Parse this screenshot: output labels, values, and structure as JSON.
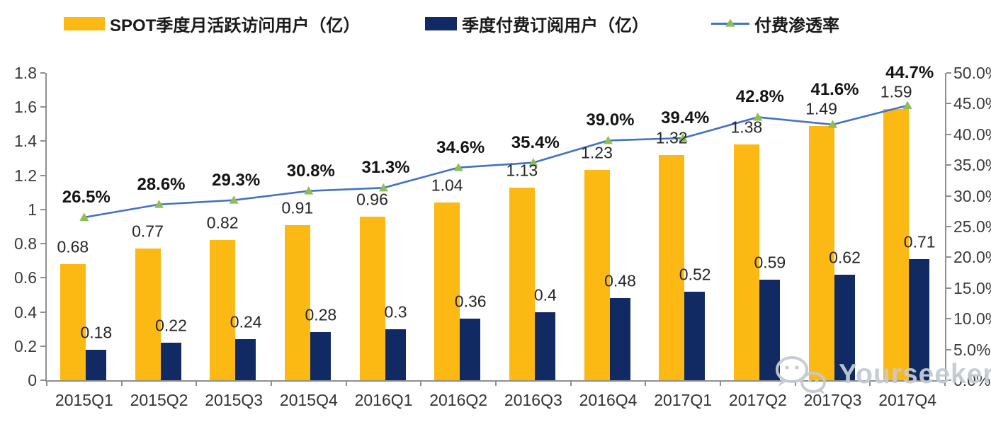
{
  "legend": {
    "items": [
      {
        "label": "SPOT季度月活跃访问用户（亿）",
        "swatch": "bar",
        "color": "#FCB813"
      },
      {
        "label": "季度付费订阅用户（亿）",
        "swatch": "bar",
        "color": "#112A64"
      },
      {
        "label": "付费渗透率",
        "swatch": "line-triangle",
        "color": "#4472C4",
        "marker_color": "#8FBE55"
      }
    ]
  },
  "chart_data": {
    "type": "bar",
    "categories": [
      "2015Q1",
      "2015Q2",
      "2015Q3",
      "2015Q4",
      "2016Q1",
      "2016Q2",
      "2016Q3",
      "2016Q4",
      "2017Q1",
      "2017Q2",
      "2017Q3",
      "2017Q4"
    ],
    "series": [
      {
        "name": "SPOT季度月活跃访问用户（亿）",
        "type": "bar",
        "axis": "left",
        "color": "#FCB813",
        "values": [
          0.68,
          0.77,
          0.82,
          0.91,
          0.96,
          1.04,
          1.13,
          1.23,
          1.32,
          1.38,
          1.49,
          1.59
        ],
        "labels": [
          "0.68",
          "0.77",
          "0.82",
          "0.91",
          "0.96",
          "1.04",
          "1.13",
          "1.23",
          "1.32",
          "1.38",
          "1.49",
          "1.59"
        ]
      },
      {
        "name": "季度付费订阅用户（亿）",
        "type": "bar",
        "axis": "left",
        "color": "#112A64",
        "values": [
          0.18,
          0.22,
          0.24,
          0.28,
          0.3,
          0.36,
          0.4,
          0.48,
          0.52,
          0.59,
          0.62,
          0.71
        ],
        "labels": [
          "0.18",
          "0.22",
          "0.24",
          "0.28",
          "0.3",
          "0.36",
          "0.4",
          "0.48",
          "0.52",
          "0.59",
          "0.62",
          "0.71"
        ]
      },
      {
        "name": "付费渗透率",
        "type": "line",
        "axis": "right",
        "color": "#4472C4",
        "marker": "triangle",
        "marker_color": "#8FBE55",
        "values": [
          26.5,
          28.6,
          29.3,
          30.8,
          31.3,
          34.6,
          35.4,
          39.0,
          39.4,
          42.8,
          41.6,
          44.7
        ],
        "labels": [
          "26.5%",
          "28.6%",
          "29.3%",
          "30.8%",
          "31.3%",
          "34.6%",
          "35.4%",
          "39.0%",
          "39.4%",
          "42.8%",
          "41.6%",
          "44.7%"
        ]
      }
    ],
    "left_axis": {
      "range": [
        0,
        1.8
      ],
      "ticks": [
        "0",
        "0.2",
        "0.4",
        "0.6",
        "0.8",
        "1",
        "1.2",
        "1.4",
        "1.6",
        "1.8"
      ]
    },
    "right_axis": {
      "range": [
        0,
        50
      ],
      "ticks": [
        "0.0%",
        "5.0%",
        "10.0%",
        "15.0%",
        "20.0%",
        "25.0%",
        "30.0%",
        "35.0%",
        "40.0%",
        "45.0%",
        "50.0%"
      ]
    },
    "grid": false,
    "legend_position": "top",
    "title": ""
  },
  "watermark": {
    "text": "Yourseeker",
    "icon": "wechat-icon"
  }
}
